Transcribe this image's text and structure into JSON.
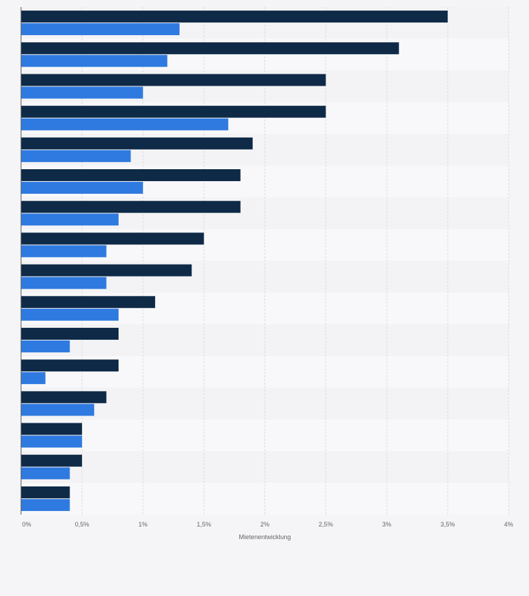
{
  "chart_data": {
    "type": "bar",
    "orientation": "horizontal",
    "title": "",
    "xlabel": "Mietenentwicklung",
    "ylabel": "",
    "xlim": [
      0,
      4
    ],
    "x_ticks": [
      0,
      0.5,
      1,
      1.5,
      2,
      2.5,
      3,
      3.5,
      4
    ],
    "x_tick_labels": [
      "0%",
      "0,5%",
      "1%",
      "1,5%",
      "2%",
      "2,5%",
      "3%",
      "3,5%",
      "4%"
    ],
    "grid": true,
    "categories": [
      "",
      "",
      "",
      "",
      "",
      "",
      "",
      "",
      "",
      "",
      "",
      "",
      "",
      "",
      "",
      ""
    ],
    "series": [
      {
        "color": "#0f2a47",
        "values": [
          3.5,
          3.1,
          2.5,
          2.5,
          1.9,
          1.8,
          1.8,
          1.5,
          1.4,
          1.1,
          0.8,
          0.8,
          0.7,
          0.5,
          0.5,
          0.4
        ]
      },
      {
        "color": "#2f7ae0",
        "values": [
          1.3,
          1.2,
          1.0,
          1.7,
          0.9,
          1.0,
          0.8,
          0.7,
          0.7,
          0.8,
          0.4,
          0.2,
          0.6,
          0.5,
          0.4,
          0.4
        ]
      }
    ],
    "row_colors": [
      "#f3f3f5",
      "#f8f8fa"
    ]
  }
}
